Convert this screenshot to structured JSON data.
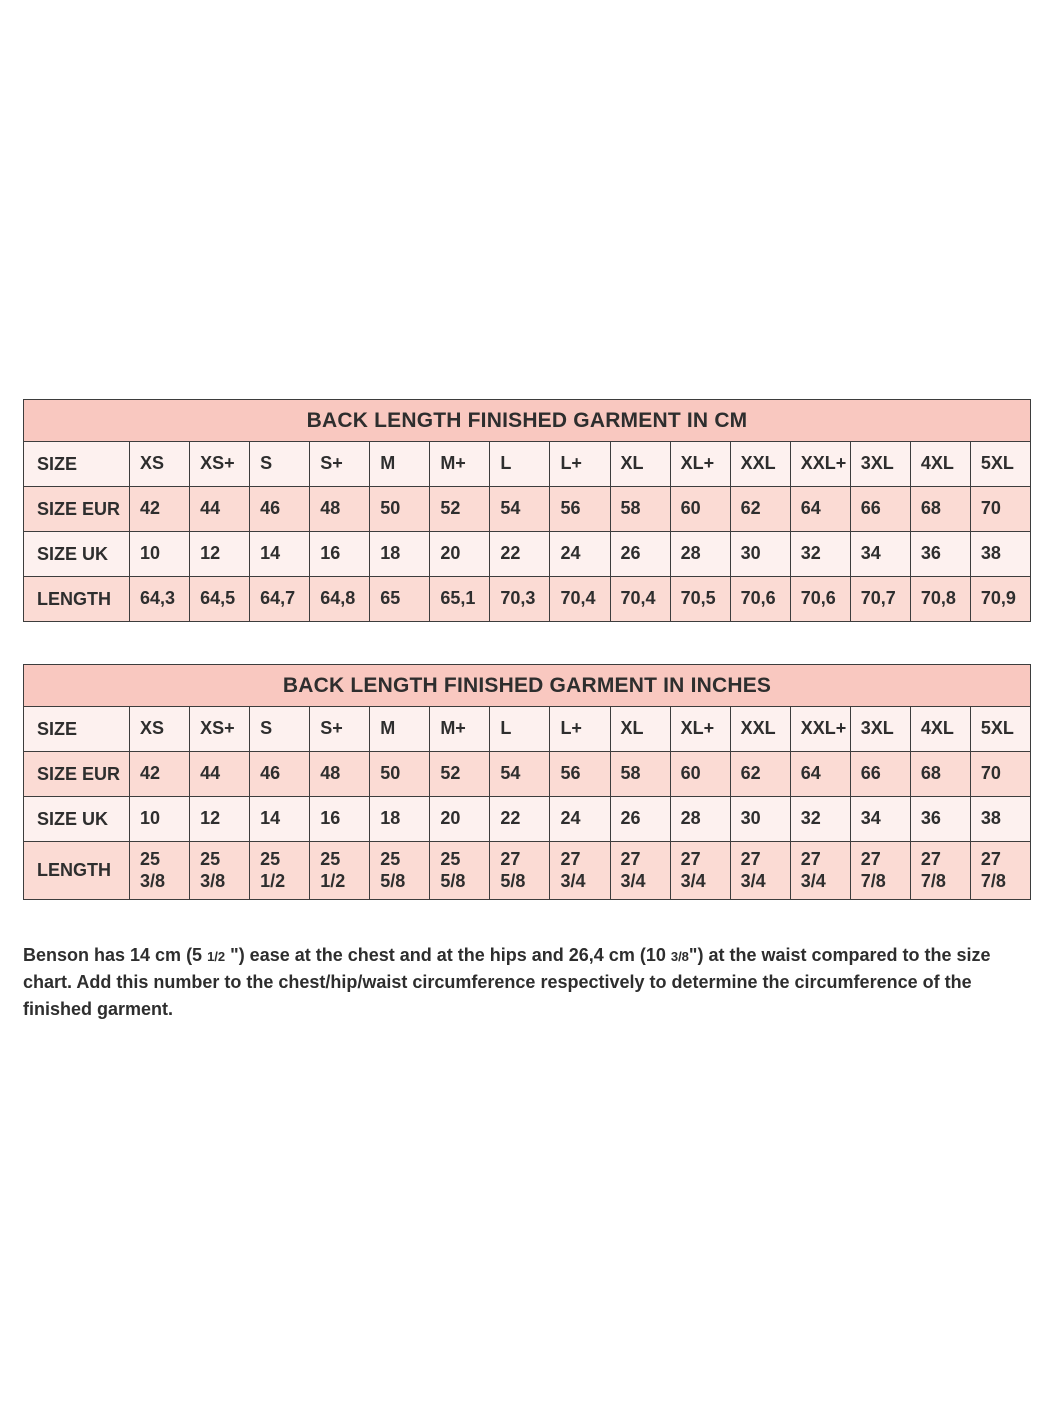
{
  "colors": {
    "title_band": "#f9c8c0",
    "row_light": "#fdf1ef",
    "row_mid": "#fbdbd4",
    "border": "#3d3d3d",
    "text": "#2e2e2e",
    "page_background": "#ffffff"
  },
  "tables": [
    {
      "name": "size-table-cm",
      "title": "BACK LENGTH FINISHED GARMENT IN CM",
      "rows": [
        {
          "header": "SIZE",
          "tone": "light",
          "tall": false,
          "values": [
            "XS",
            "XS+",
            "S",
            "S+",
            "M",
            "M+",
            "L",
            "L+",
            "XL",
            "XL+",
            "XXL",
            "XXL+",
            "3XL",
            "4XL",
            "5XL"
          ]
        },
        {
          "header": "SIZE EUR",
          "tone": "mid",
          "tall": false,
          "values": [
            "42",
            "44",
            "46",
            "48",
            "50",
            "52",
            "54",
            "56",
            "58",
            "60",
            "62",
            "64",
            "66",
            "68",
            "70"
          ]
        },
        {
          "header": "SIZE UK",
          "tone": "light",
          "tall": false,
          "values": [
            "10",
            "12",
            "14",
            "16",
            "18",
            "20",
            "22",
            "24",
            "26",
            "28",
            "30",
            "32",
            "34",
            "36",
            "38"
          ]
        },
        {
          "header": "LENGTH",
          "tone": "mid",
          "tall": false,
          "values": [
            "64,3",
            "64,5",
            "64,7",
            "64,8",
            "65",
            "65,1",
            "70,3",
            "70,4",
            "70,4",
            "70,5",
            "70,6",
            "70,6",
            "70,7",
            "70,8",
            "70,9"
          ]
        }
      ]
    },
    {
      "name": "size-table-inches",
      "title": "BACK LENGTH FINISHED GARMENT IN INCHES",
      "rows": [
        {
          "header": "SIZE",
          "tone": "light",
          "tall": false,
          "values": [
            "XS",
            "XS+",
            "S",
            "S+",
            "M",
            "M+",
            "L",
            "L+",
            "XL",
            "XL+",
            "XXL",
            "XXL+",
            "3XL",
            "4XL",
            "5XL"
          ]
        },
        {
          "header": "SIZE EUR",
          "tone": "mid",
          "tall": false,
          "values": [
            "42",
            "44",
            "46",
            "48",
            "50",
            "52",
            "54",
            "56",
            "58",
            "60",
            "62",
            "64",
            "66",
            "68",
            "70"
          ]
        },
        {
          "header": "SIZE UK",
          "tone": "light",
          "tall": false,
          "values": [
            "10",
            "12",
            "14",
            "16",
            "18",
            "20",
            "22",
            "24",
            "26",
            "28",
            "30",
            "32",
            "34",
            "36",
            "38"
          ]
        },
        {
          "header": "LENGTH",
          "tone": "mid",
          "tall": true,
          "values": [
            "25 3/8",
            "25 3/8",
            "25 1/2",
            "25 1/2",
            "25 5/8",
            "25 5/8",
            "27 5/8",
            "27 3/4",
            "27 3/4",
            "27 3/4",
            "27 3/4",
            "27 3/4",
            "27 7/8",
            "27 7/8",
            "27 7/8"
          ]
        }
      ]
    }
  ],
  "footnote": {
    "segments": [
      {
        "text": "Benson has 14 cm (5 ",
        "small": false
      },
      {
        "text": "1/2",
        "small": true
      },
      {
        "text": " \") ease at the chest and at the hips and 26,4 cm (10 ",
        "small": false
      },
      {
        "text": "3/8",
        "small": true
      },
      {
        "text": "\") at the waist compared to the size chart. Add this number to the chest/hip/waist circumference respectively to determine the circumference of the finished garment.",
        "small": false
      }
    ]
  }
}
